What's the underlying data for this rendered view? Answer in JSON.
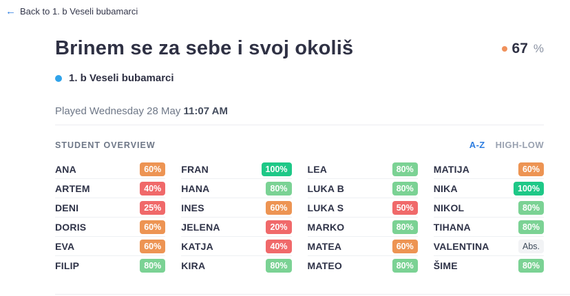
{
  "back_link": {
    "arrow_glyph": "←",
    "label": "Back to 1. b Veseli bubamarci"
  },
  "header": {
    "title": "Brinem se za sebe i svoj okoliš",
    "score": {
      "value": "67",
      "unit": "%"
    },
    "group": "1. b Veseli bubamarci",
    "played_prefix": "Played Wednesday 28 May ",
    "played_time": "11:07 AM"
  },
  "overview": {
    "label": "STUDENT OVERVIEW",
    "sort": {
      "az_label": "A-Z",
      "high_low_label": "HIGH-LOW",
      "active": "A-Z"
    }
  },
  "students": {
    "columns": [
      [
        {
          "name": "ANA",
          "score": "60%",
          "level": "orange"
        },
        {
          "name": "ARTEM",
          "score": "40%",
          "level": "red"
        },
        {
          "name": "DENI",
          "score": "25%",
          "level": "red"
        },
        {
          "name": "DORIS",
          "score": "60%",
          "level": "orange"
        },
        {
          "name": "EVA",
          "score": "60%",
          "level": "orange"
        },
        {
          "name": "FILIP",
          "score": "80%",
          "level": "green"
        }
      ],
      [
        {
          "name": "FRAN",
          "score": "100%",
          "level": "green-strong"
        },
        {
          "name": "HANA",
          "score": "80%",
          "level": "green"
        },
        {
          "name": "INES",
          "score": "60%",
          "level": "orange"
        },
        {
          "name": "JELENA",
          "score": "20%",
          "level": "red"
        },
        {
          "name": "KATJA",
          "score": "40%",
          "level": "red"
        },
        {
          "name": "KIRA",
          "score": "80%",
          "level": "green"
        }
      ],
      [
        {
          "name": "LEA",
          "score": "80%",
          "level": "green"
        },
        {
          "name": "LUKA B",
          "score": "80%",
          "level": "green"
        },
        {
          "name": "LUKA S",
          "score": "50%",
          "level": "red"
        },
        {
          "name": "MARKO",
          "score": "80%",
          "level": "green"
        },
        {
          "name": "MATEA",
          "score": "60%",
          "level": "orange"
        },
        {
          "name": "MATEO",
          "score": "80%",
          "level": "green"
        }
      ],
      [
        {
          "name": "MATIJA",
          "score": "60%",
          "level": "orange"
        },
        {
          "name": "NIKA",
          "score": "100%",
          "level": "green-strong"
        },
        {
          "name": "NIKOL",
          "score": "80%",
          "level": "green"
        },
        {
          "name": "TIHANA",
          "score": "80%",
          "level": "green"
        },
        {
          "name": "VALENTINA",
          "score": "Abs.",
          "level": "absent"
        },
        {
          "name": "ŠIME",
          "score": "80%",
          "level": "green"
        }
      ]
    ]
  },
  "colors": {
    "accent_blue": "#2d7de0",
    "dot_blue": "#30a3ea",
    "dot_orange": "#f0915c",
    "badge_orange": "#ed9453",
    "badge_red": "#f0696a",
    "badge_green": "#7bd294",
    "badge_green_strong": "#1ec887",
    "badge_absent_bg": "#f2f3f5",
    "badge_absent_text": "#3c4858"
  }
}
